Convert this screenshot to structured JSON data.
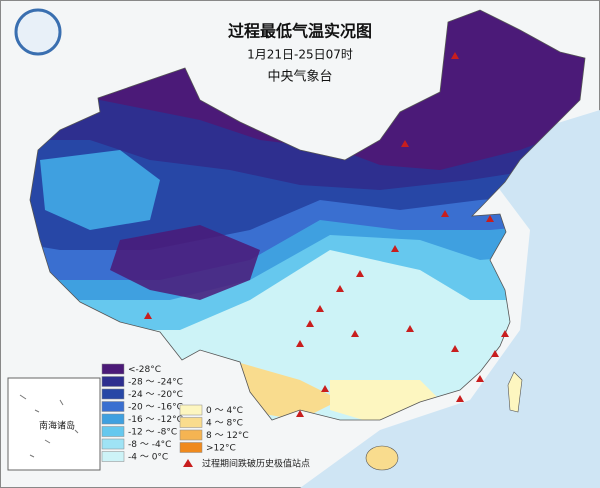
{
  "header": {
    "title": "过程最低气温实况图",
    "subtitle": "1月21日-25日07时",
    "agency": "中央气象台"
  },
  "inset": {
    "label": "南海诸岛"
  },
  "legend": {
    "items": [
      {
        "label": "<-28°C",
        "color": "#4b1a78"
      },
      {
        "label": "-28 ～ -24°C",
        "color": "#2e2f8f"
      },
      {
        "label": "-24 ～ -20°C",
        "color": "#2747a6"
      },
      {
        "label": "-20 ～ -16°C",
        "color": "#3a6fd0"
      },
      {
        "label": "-16 ～ -12°C",
        "color": "#3fa0e0"
      },
      {
        "label": "-12 ～ -8°C",
        "color": "#66c8ee"
      },
      {
        "label": "-8 ～ -4°C",
        "color": "#9fe3f5"
      },
      {
        "label": "-4 ～ 0°C",
        "color": "#cdf3f7"
      },
      {
        "label": "0 ～ 4°C",
        "color": "#fdf6c0"
      },
      {
        "label": "4 ～ 8°C",
        "color": "#f9dc8e"
      },
      {
        "label": "8 ～ 12°C",
        "color": "#f5b452"
      },
      {
        "label": ">12°C",
        "color": "#ef8a1e"
      }
    ],
    "station": "过程期间跌破历史极值站点"
  }
}
